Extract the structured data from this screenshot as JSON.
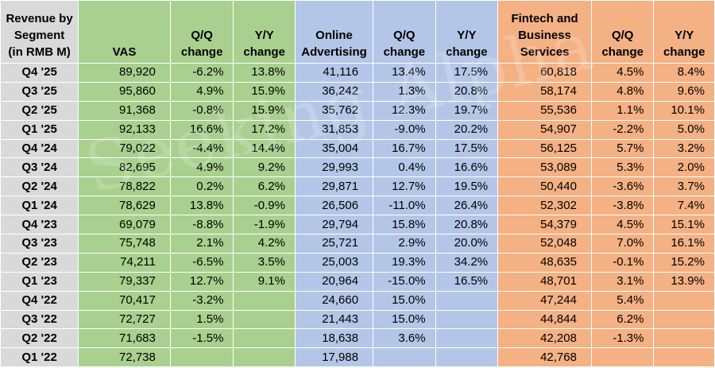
{
  "table": {
    "headers": {
      "segment": "Revenue by Segment (in RMB M)",
      "vas": "VAS",
      "vas_qq": "Q/Q change",
      "vas_yy": "Y/Y change",
      "adv": "Online Advertising",
      "adv_qq": "Q/Q change",
      "adv_yy": "Y/Y change",
      "fin": "Fintech and Business Services",
      "fin_qq": "Q/Q change",
      "fin_yy": "Y/Y change"
    },
    "rows": [
      [
        "Q4 '25",
        "89,920",
        "-6.2%",
        "13.8%",
        "41,116",
        "13.4%",
        "17.5%",
        "60,818",
        "4.5%",
        "8.4%"
      ],
      [
        "Q3 '25",
        "95,860",
        "4.9%",
        "15.9%",
        "36,242",
        "1.3%",
        "20.8%",
        "58,174",
        "4.8%",
        "9.6%"
      ],
      [
        "Q2 '25",
        "91,368",
        "-0.8%",
        "15.9%",
        "35,762",
        "12.3%",
        "19.7%",
        "55,536",
        "1.1%",
        "10.1%"
      ],
      [
        "Q1 '25",
        "92,133",
        "16.6%",
        "17.2%",
        "31,853",
        "-9.0%",
        "20.2%",
        "54,907",
        "-2.2%",
        "5.0%"
      ],
      [
        "Q4 '24",
        "79,022",
        "-4.4%",
        "14.4%",
        "35,004",
        "16.7%",
        "17.5%",
        "56,125",
        "5.7%",
        "3.2%"
      ],
      [
        "Q3 '24",
        "82,695",
        "4.9%",
        "9.2%",
        "29,993",
        "0.4%",
        "16.6%",
        "53,089",
        "5.3%",
        "2.0%"
      ],
      [
        "Q2 '24",
        "78,822",
        "0.2%",
        "6.2%",
        "29,871",
        "12.7%",
        "19.5%",
        "50,440",
        "-3.6%",
        "3.7%"
      ],
      [
        "Q1 '24",
        "78,629",
        "13.8%",
        "-0.9%",
        "26,506",
        "-11.0%",
        "26.4%",
        "52,302",
        "-3.8%",
        "7.4%"
      ],
      [
        "Q4 '23",
        "69,079",
        "-8.8%",
        "-1.9%",
        "29,794",
        "15.8%",
        "20.8%",
        "54,379",
        "4.5%",
        "15.1%"
      ],
      [
        "Q3 '23",
        "75,748",
        "2.1%",
        "4.2%",
        "25,721",
        "2.9%",
        "20.0%",
        "52,048",
        "7.0%",
        "16.1%"
      ],
      [
        "Q2 '23",
        "74,211",
        "-6.5%",
        "3.5%",
        "25,003",
        "19.3%",
        "34.2%",
        "48,635",
        "-0.1%",
        "15.2%"
      ],
      [
        "Q1 '23",
        "79,337",
        "12.7%",
        "9.1%",
        "20,964",
        "-15.0%",
        "16.5%",
        "48,701",
        "3.1%",
        "13.9%"
      ],
      [
        "Q4 '22",
        "70,417",
        "-3.2%",
        "",
        "24,660",
        "15.0%",
        "",
        "47,244",
        "5.4%",
        ""
      ],
      [
        "Q3 '22",
        "72,727",
        "1.5%",
        "",
        "21,443",
        "15.0%",
        "",
        "44,844",
        "6.2%",
        ""
      ],
      [
        "Q2 '22",
        "71,683",
        "-1.5%",
        "",
        "18,638",
        "3.6%",
        "",
        "42,208",
        "-1.3%",
        ""
      ],
      [
        "Q1 '22",
        "72,738",
        "",
        "",
        "17,988",
        "",
        "",
        "42,768",
        "",
        ""
      ]
    ]
  },
  "watermark": "Seeking Alpha",
  "colors": {
    "label": "#d9d9d9",
    "vas": "#a9d08e",
    "advertising": "#b4c6e7",
    "fintech": "#f4b183"
  }
}
